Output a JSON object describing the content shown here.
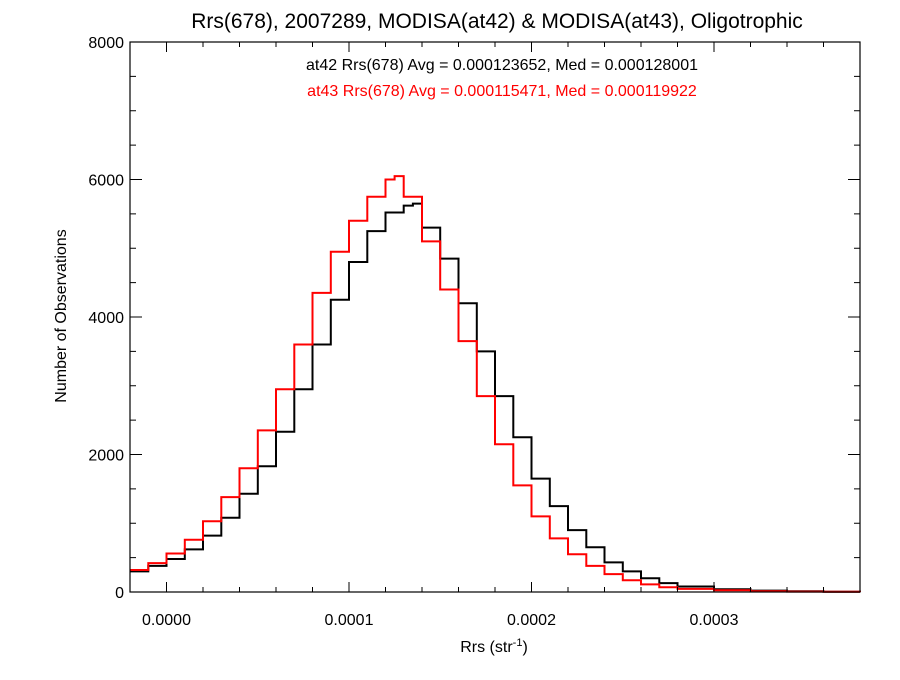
{
  "chart_data": {
    "type": "line",
    "title": "Rrs(678), 2007289, MODISA(at42) & MODISA(at43), Oligotrophic",
    "xlabel": "Rrs (str",
    "xlabel_superscript": "-1",
    "xlabel_close": ")",
    "ylabel": "Number of Observations",
    "xlim": [
      -2e-05,
      0.00038
    ],
    "ylim": [
      0,
      8000
    ],
    "x_ticks": [
      0.0,
      0.0001,
      0.0002,
      0.0003
    ],
    "x_tick_labels": [
      "0.0000",
      "0.0001",
      "0.0002",
      "0.0003"
    ],
    "y_ticks": [
      0,
      2000,
      4000,
      6000,
      8000
    ],
    "y_tick_labels": [
      "0",
      "2000",
      "4000",
      "6000",
      "8000"
    ],
    "grid": false,
    "annotations": [
      {
        "text": "at42 Rrs(678) Avg = 0.000123652, Med = 0.000128001",
        "color": "#000000"
      },
      {
        "text": "at43 Rrs(678) Avg = 0.000115471, Med = 0.000119922",
        "color": "#ff0000"
      }
    ],
    "series": [
      {
        "color": "#000000",
        "style": "step",
        "x": [
          -2e-05,
          -1e-05,
          0.0,
          1e-05,
          2e-05,
          3e-05,
          4e-05,
          5e-05,
          6e-05,
          7e-05,
          8e-05,
          9e-05,
          0.0001,
          0.00011,
          0.00012,
          0.00013,
          0.000135,
          0.00014,
          0.00015,
          0.00016,
          0.00017,
          0.00018,
          0.00019,
          0.0002,
          0.00021,
          0.00022,
          0.00023,
          0.00024,
          0.00025,
          0.00026,
          0.00027,
          0.00028,
          0.0003,
          0.00032,
          0.00034,
          0.00036,
          0.00038
        ],
        "values": [
          300,
          380,
          480,
          620,
          820,
          1080,
          1430,
          1830,
          2330,
          2950,
          3600,
          4250,
          4800,
          5250,
          5520,
          5620,
          5650,
          5300,
          4850,
          4200,
          3500,
          2850,
          2250,
          1650,
          1250,
          900,
          650,
          430,
          300,
          200,
          130,
          80,
          40,
          20,
          10,
          5,
          3
        ]
      },
      {
        "color": "#ff0000",
        "style": "step",
        "x": [
          -2e-05,
          -1e-05,
          0.0,
          1e-05,
          2e-05,
          3e-05,
          4e-05,
          5e-05,
          6e-05,
          7e-05,
          8e-05,
          9e-05,
          0.0001,
          0.00011,
          0.00012,
          0.000125,
          0.00013,
          0.00014,
          0.00015,
          0.00016,
          0.00017,
          0.00018,
          0.00019,
          0.0002,
          0.00021,
          0.00022,
          0.00023,
          0.00024,
          0.00025,
          0.00026,
          0.00027,
          0.00028,
          0.0003,
          0.00032,
          0.00034,
          0.00036,
          0.00038
        ],
        "values": [
          320,
          420,
          560,
          760,
          1030,
          1380,
          1800,
          2350,
          2950,
          3600,
          4350,
          4950,
          5400,
          5750,
          6000,
          6050,
          5750,
          5100,
          4400,
          3650,
          2850,
          2150,
          1550,
          1100,
          780,
          550,
          380,
          260,
          170,
          110,
          70,
          45,
          25,
          12,
          6,
          3,
          2
        ]
      }
    ]
  }
}
